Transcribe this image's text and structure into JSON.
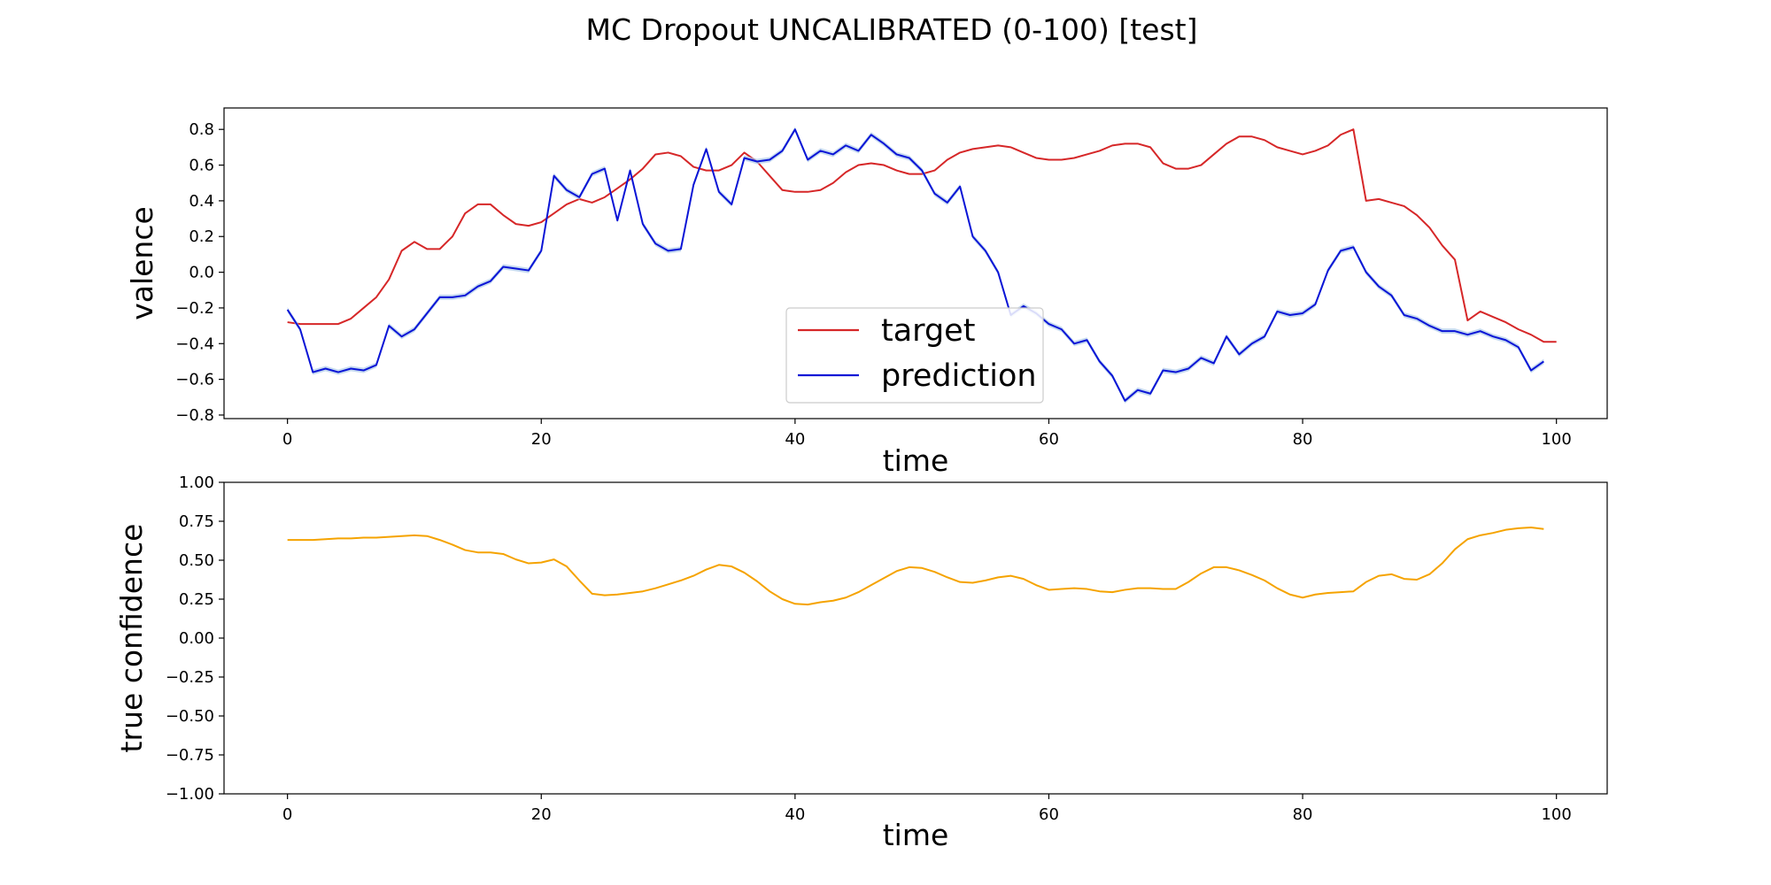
{
  "chart_data": {
    "title": "MC Dropout UNCALIBRATED (0-100) [test]",
    "type": "line",
    "panels": [
      {
        "id": "valence-panel",
        "xlabel": "time",
        "ylabel": "valence",
        "xlim": [
          -5,
          104
        ],
        "ylim": [
          -0.82,
          0.92
        ],
        "xticks": [
          0,
          20,
          40,
          60,
          80,
          100
        ],
        "yticks": [
          -0.8,
          -0.6,
          -0.4,
          -0.2,
          0.0,
          0.2,
          0.4,
          0.6,
          0.8
        ],
        "ytick_labels": [
          "−0.8",
          "−0.6",
          "−0.4",
          "−0.2",
          "0.0",
          "0.2",
          "0.4",
          "0.6",
          "0.8"
        ],
        "grid": false,
        "legend": {
          "placement": "lower-center",
          "entries": [
            "target",
            "prediction"
          ]
        },
        "series": [
          {
            "name": "target",
            "color": "#d62728",
            "values": [
              -0.28,
              -0.29,
              -0.29,
              -0.29,
              -0.29,
              -0.26,
              -0.2,
              -0.14,
              -0.04,
              0.12,
              0.17,
              0.13,
              0.13,
              0.2,
              0.33,
              0.38,
              0.38,
              0.32,
              0.27,
              0.26,
              0.28,
              0.33,
              0.38,
              0.41,
              0.39,
              0.42,
              0.47,
              0.52,
              0.58,
              0.66,
              0.67,
              0.65,
              0.59,
              0.57,
              0.57,
              0.6,
              0.67,
              0.62,
              0.54,
              0.46,
              0.45,
              0.45,
              0.46,
              0.5,
              0.56,
              0.6,
              0.61,
              0.6,
              0.57,
              0.55,
              0.55,
              0.57,
              0.63,
              0.67,
              0.69,
              0.7,
              0.71,
              0.7,
              0.67,
              0.64,
              0.63,
              0.63,
              0.64,
              0.66,
              0.68,
              0.71,
              0.72,
              0.72,
              0.7,
              0.61,
              0.58,
              0.58,
              0.6,
              0.66,
              0.72,
              0.76,
              0.76,
              0.74,
              0.7,
              0.68,
              0.66,
              0.68,
              0.71,
              0.77,
              0.8,
              0.4,
              0.41,
              0.39,
              0.37,
              0.32,
              0.25,
              0.15,
              0.07,
              -0.27,
              -0.22,
              -0.25,
              -0.28,
              -0.32,
              -0.35,
              -0.39,
              -0.39
            ]
          },
          {
            "name": "prediction",
            "color": "#0a14d6",
            "band_color": "#aecbea",
            "values": [
              -0.21,
              -0.32,
              -0.56,
              -0.54,
              -0.56,
              -0.54,
              -0.55,
              -0.52,
              -0.3,
              -0.36,
              -0.32,
              -0.23,
              -0.14,
              -0.14,
              -0.13,
              -0.08,
              -0.05,
              0.03,
              0.02,
              0.01,
              0.12,
              0.54,
              0.46,
              0.42,
              0.55,
              0.58,
              0.29,
              0.57,
              0.27,
              0.16,
              0.12,
              0.13,
              0.49,
              0.69,
              0.45,
              0.38,
              0.64,
              0.62,
              0.63,
              0.68,
              0.8,
              0.63,
              0.68,
              0.66,
              0.71,
              0.68,
              0.77,
              0.72,
              0.66,
              0.64,
              0.57,
              0.44,
              0.39,
              0.48,
              0.2,
              0.12,
              0.0,
              -0.24,
              -0.19,
              -0.23,
              -0.29,
              -0.32,
              -0.4,
              -0.38,
              -0.5,
              -0.58,
              -0.72,
              -0.66,
              -0.68,
              -0.55,
              -0.56,
              -0.54,
              -0.48,
              -0.51,
              -0.36,
              -0.46,
              -0.4,
              -0.36,
              -0.22,
              -0.24,
              -0.23,
              -0.18,
              0.01,
              0.12,
              0.14,
              0.0,
              -0.08,
              -0.13,
              -0.24,
              -0.26,
              -0.3,
              -0.33,
              -0.33,
              -0.35,
              -0.33,
              -0.36,
              -0.38,
              -0.42,
              -0.55,
              -0.5
            ]
          }
        ]
      },
      {
        "id": "confidence-panel",
        "xlabel": "time",
        "ylabel": "true confidence",
        "xlim": [
          -5,
          104
        ],
        "ylim": [
          -1.0,
          1.0
        ],
        "xticks": [
          0,
          20,
          40,
          60,
          80,
          100
        ],
        "yticks": [
          -1.0,
          -0.75,
          -0.5,
          -0.25,
          0.0,
          0.25,
          0.5,
          0.75,
          1.0
        ],
        "ytick_labels": [
          "−1.00",
          "−0.75",
          "−0.50",
          "−0.25",
          "0.00",
          "0.25",
          "0.50",
          "0.75",
          "1.00"
        ],
        "grid": false,
        "series": [
          {
            "name": "",
            "color": "#f5a300",
            "values": [
              0.63,
              0.63,
              0.63,
              0.635,
              0.64,
              0.64,
              0.645,
              0.645,
              0.65,
              0.655,
              0.66,
              0.655,
              0.63,
              0.6,
              0.565,
              0.55,
              0.55,
              0.54,
              0.505,
              0.48,
              0.485,
              0.505,
              0.46,
              0.37,
              0.285,
              0.275,
              0.28,
              0.29,
              0.3,
              0.32,
              0.345,
              0.37,
              0.4,
              0.44,
              0.47,
              0.46,
              0.42,
              0.365,
              0.3,
              0.25,
              0.22,
              0.215,
              0.23,
              0.24,
              0.26,
              0.295,
              0.34,
              0.385,
              0.43,
              0.455,
              0.45,
              0.425,
              0.39,
              0.36,
              0.355,
              0.37,
              0.39,
              0.4,
              0.38,
              0.34,
              0.31,
              0.315,
              0.32,
              0.315,
              0.3,
              0.295,
              0.31,
              0.32,
              0.32,
              0.315,
              0.315,
              0.36,
              0.415,
              0.455,
              0.455,
              0.435,
              0.405,
              0.37,
              0.32,
              0.28,
              0.26,
              0.28,
              0.29,
              0.295,
              0.3,
              0.36,
              0.4,
              0.41,
              0.38,
              0.375,
              0.41,
              0.48,
              0.57,
              0.635,
              0.66,
              0.675,
              0.695,
              0.705,
              0.71,
              0.7
            ]
          }
        ]
      }
    ]
  }
}
